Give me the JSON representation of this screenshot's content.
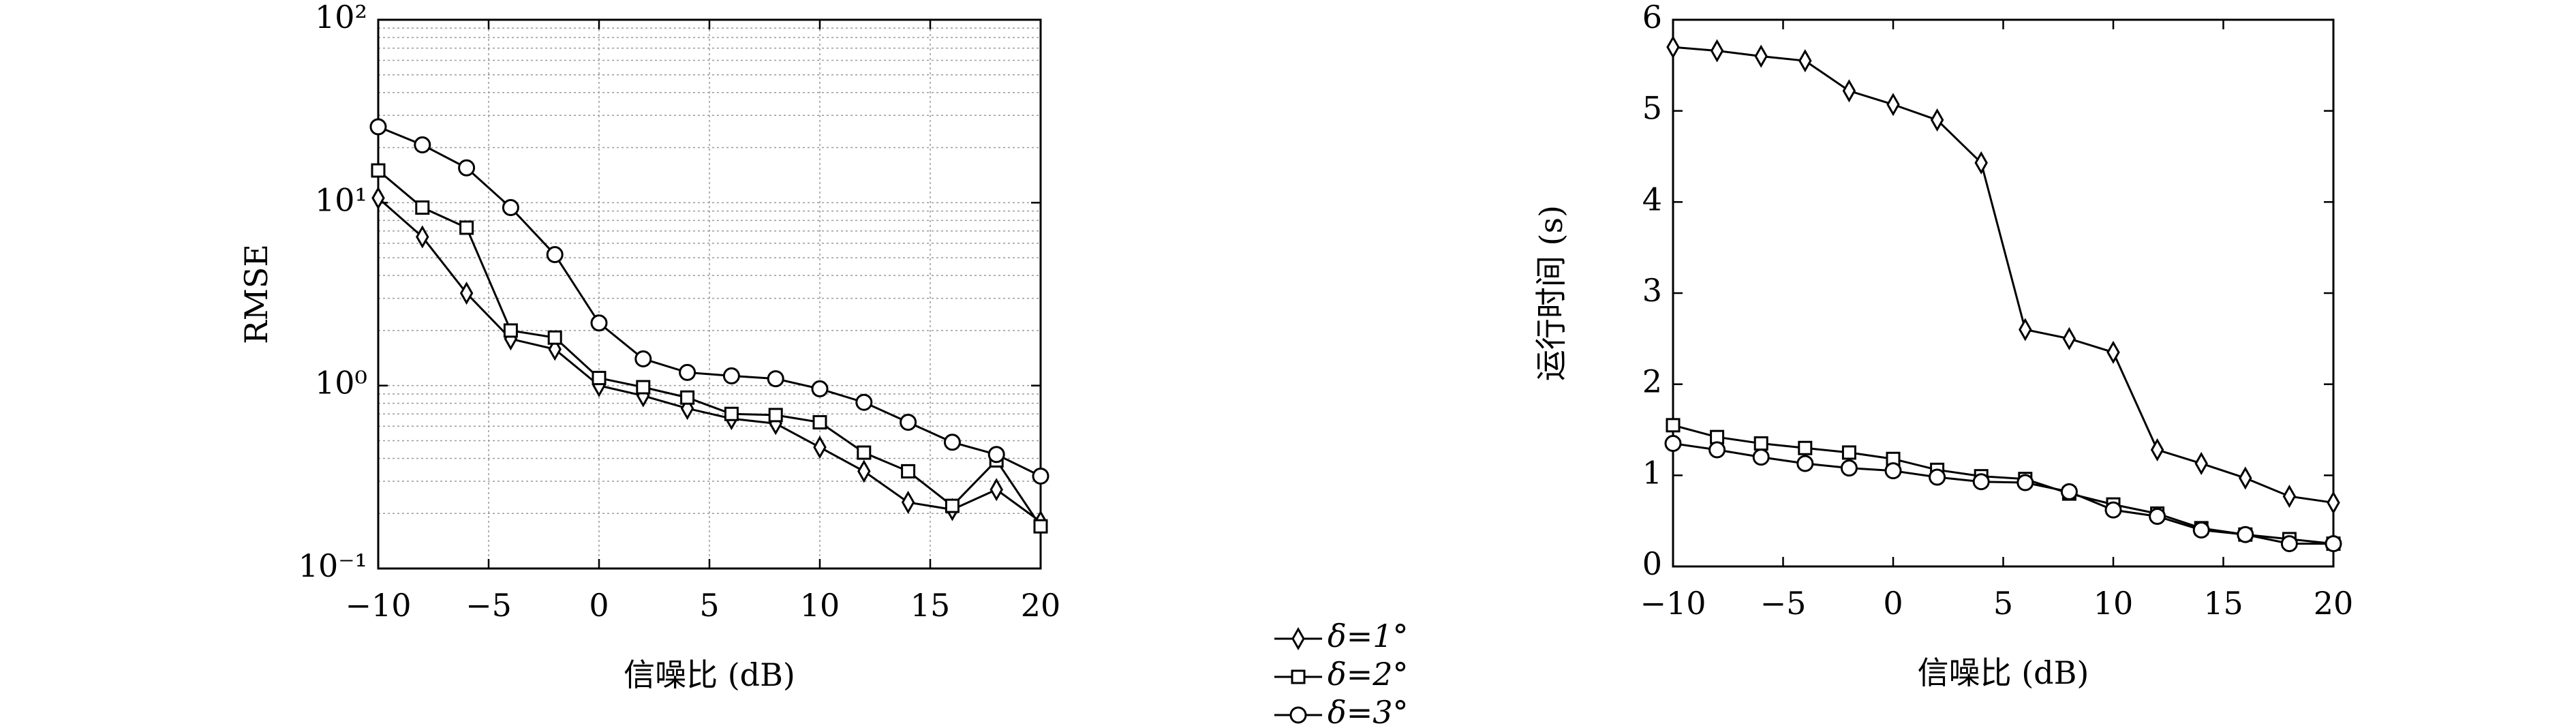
{
  "chart_data": [
    {
      "type": "line",
      "xlabel": "信噪比 (dB)",
      "ylabel": "RMSE",
      "log_y": true,
      "grid": true,
      "x": [
        -10,
        -8,
        -6,
        -4,
        -2,
        0,
        2,
        4,
        6,
        8,
        10,
        12,
        14,
        16,
        18,
        20
      ],
      "xlim": [
        -10,
        20
      ],
      "xticks": [
        {
          "value": -10,
          "label": "−10"
        },
        {
          "value": -5,
          "label": "−5"
        },
        0,
        5,
        10,
        15,
        20
      ],
      "ylim": [
        0.1,
        100
      ],
      "yticks": [
        {
          "value": 0.1,
          "label": "10⁻¹"
        },
        {
          "value": 1,
          "label": "10⁰"
        },
        {
          "value": 10,
          "label": "10¹"
        },
        {
          "value": 100,
          "label": "10²"
        }
      ],
      "yminorticks": [
        0.2,
        0.3,
        0.4,
        0.5,
        0.6,
        0.7,
        0.8,
        0.9,
        2,
        3,
        4,
        5,
        6,
        7,
        8,
        9,
        20,
        30,
        40,
        50,
        60,
        70,
        80,
        90
      ],
      "series": [
        {
          "name": "δ=1°",
          "color": "#000000",
          "marker": "diamond",
          "values": [
            10.6,
            6.5,
            3.2,
            1.8,
            1.58,
            1.0,
            0.88,
            0.75,
            0.66,
            0.62,
            0.46,
            0.34,
            0.23,
            0.21,
            0.27,
            0.18
          ]
        },
        {
          "name": "δ=2°",
          "color": "#000000",
          "marker": "square",
          "values": [
            15,
            9.4,
            7.3,
            2.0,
            1.83,
            1.1,
            0.98,
            0.86,
            0.7,
            0.69,
            0.63,
            0.43,
            0.34,
            0.22,
            0.39,
            0.17
          ]
        },
        {
          "name": "δ=3°",
          "color": "#000000",
          "marker": "circle",
          "values": [
            26,
            20.7,
            15.5,
            9.4,
            5.2,
            2.2,
            1.4,
            1.18,
            1.13,
            1.09,
            0.96,
            0.81,
            0.63,
            0.49,
            0.42,
            0.32
          ]
        }
      ]
    },
    {
      "type": "line",
      "xlabel": "信噪比 (dB)",
      "ylabel": "运行时间 (s)",
      "log_y": false,
      "grid": false,
      "x": [
        -10,
        -8,
        -6,
        -4,
        -2,
        0,
        2,
        4,
        6,
        8,
        10,
        12,
        14,
        16,
        18,
        20
      ],
      "xlim": [
        -10,
        20
      ],
      "xticks": [
        {
          "value": -10,
          "label": "−10"
        },
        {
          "value": -5,
          "label": "−5"
        },
        0,
        5,
        10,
        15,
        20
      ],
      "ylim": [
        0,
        6
      ],
      "yticks": [
        0,
        1,
        2,
        3,
        4,
        5,
        6
      ],
      "series": [
        {
          "name": "δ=1°",
          "color": "#000000",
          "marker": "diamond",
          "values": [
            5.7,
            5.66,
            5.6,
            5.55,
            5.22,
            5.07,
            4.9,
            4.43,
            2.6,
            2.5,
            2.35,
            1.28,
            1.13,
            0.97,
            0.77,
            0.7
          ]
        },
        {
          "name": "δ=2°",
          "color": "#000000",
          "marker": "square",
          "values": [
            1.55,
            1.42,
            1.35,
            1.3,
            1.25,
            1.18,
            1.06,
            0.99,
            0.96,
            0.8,
            0.68,
            0.58,
            0.42,
            0.35,
            0.3,
            0.25
          ]
        },
        {
          "name": "δ=3°",
          "color": "#000000",
          "marker": "circle",
          "values": [
            1.35,
            1.28,
            1.2,
            1.13,
            1.08,
            1.05,
            0.98,
            0.93,
            0.92,
            0.82,
            0.62,
            0.55,
            0.4,
            0.35,
            0.25,
            0.25
          ]
        }
      ]
    }
  ]
}
